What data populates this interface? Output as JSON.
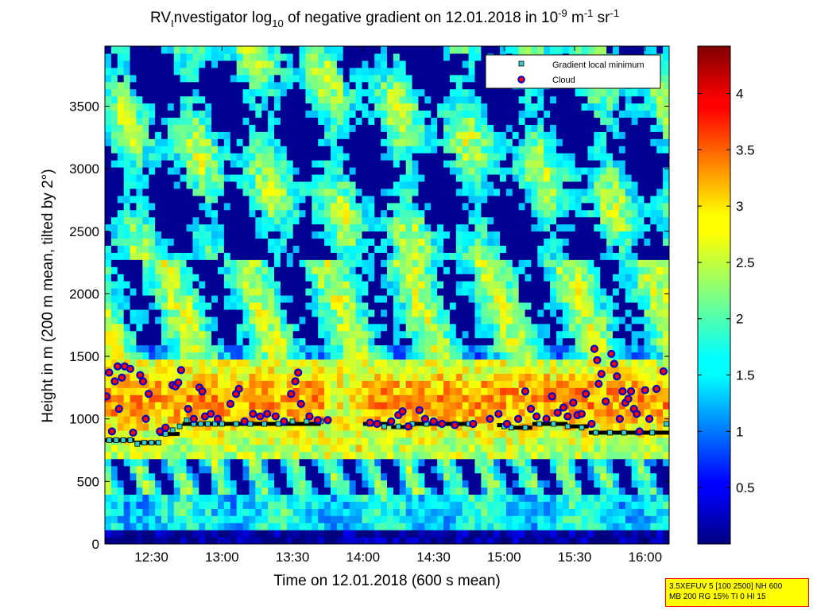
{
  "chart_data": {
    "type": "heatmap",
    "title_main": "RV",
    "title_sub": "I",
    "title_rest": "nvestigator log",
    "title_sub2": "10",
    "title_tail": " of negative gradient on 12.01.2018 in 10",
    "title_sup1": "-9",
    "title_m": " m",
    "title_sup2": "-1",
    "title_sr": " sr",
    "title_sup3": "-1",
    "xlabel": "Time on 12.01.2018 (600 s mean)",
    "ylabel": "Height in m (200 m mean, tilted by 2°)",
    "x_ticks": [
      "12:30",
      "13:00",
      "13:30",
      "14:00",
      "14:30",
      "15:00",
      "15:30",
      "16:00"
    ],
    "x_tick_hours": [
      12.5,
      13.0,
      13.5,
      14.0,
      14.5,
      15.0,
      15.5,
      16.0
    ],
    "xlim": [
      12.17,
      16.17
    ],
    "y_ticks": [
      0,
      500,
      1000,
      1500,
      2000,
      2500,
      3000,
      3500
    ],
    "ylim": [
      0,
      3980
    ],
    "colorbar": {
      "ticks": [
        "0.5",
        "1",
        "1.5",
        "2",
        "2.5",
        "3",
        "3.5",
        "4"
      ],
      "tick_values": [
        0.5,
        1,
        1.5,
        2,
        2.5,
        3,
        3.5,
        4
      ],
      "range": [
        0,
        4.42
      ],
      "colormap": "jet"
    },
    "legend": {
      "placement": "top-right",
      "entries": [
        {
          "label": "Gradient local minimum",
          "marker": "square",
          "color": "#33cccc"
        },
        {
          "label": "Cloud",
          "marker": "circle",
          "color": "#ff0000",
          "edge": "#0000cc"
        }
      ]
    },
    "gradient_minimum": [
      [
        12.2,
        830
      ],
      [
        12.25,
        830
      ],
      [
        12.3,
        830
      ],
      [
        12.35,
        830
      ],
      [
        12.4,
        800
      ],
      [
        12.45,
        810
      ],
      [
        12.5,
        810
      ],
      [
        12.55,
        810
      ],
      [
        12.6,
        880
      ],
      [
        12.65,
        910
      ],
      [
        12.7,
        940
      ],
      [
        12.75,
        990
      ],
      [
        12.8,
        960
      ],
      [
        12.85,
        960
      ],
      [
        12.9,
        960
      ],
      [
        12.95,
        960
      ],
      [
        13.0,
        960
      ],
      [
        13.1,
        960
      ],
      [
        13.2,
        960
      ],
      [
        13.3,
        960
      ],
      [
        13.4,
        960
      ],
      [
        13.5,
        980
      ],
      [
        13.6,
        980
      ],
      [
        13.7,
        980
      ],
      [
        14.05,
        960
      ],
      [
        14.15,
        940
      ],
      [
        14.25,
        940
      ],
      [
        14.35,
        960
      ],
      [
        14.45,
        960
      ],
      [
        14.55,
        960
      ],
      [
        14.65,
        960
      ],
      [
        14.75,
        960
      ],
      [
        15.0,
        940
      ],
      [
        15.05,
        930
      ],
      [
        15.15,
        930
      ],
      [
        15.25,
        960
      ],
      [
        15.35,
        960
      ],
      [
        15.45,
        940
      ],
      [
        15.55,
        930
      ],
      [
        15.65,
        890
      ],
      [
        15.75,
        890
      ],
      [
        15.85,
        890
      ],
      [
        15.95,
        890
      ],
      [
        16.05,
        890
      ],
      [
        16.15,
        960
      ]
    ],
    "cloud": [
      [
        12.18,
        1180
      ],
      [
        12.2,
        1370
      ],
      [
        12.22,
        900
      ],
      [
        12.24,
        1300
      ],
      [
        12.26,
        1420
      ],
      [
        12.27,
        1080
      ],
      [
        12.29,
        1330
      ],
      [
        12.31,
        1420
      ],
      [
        12.35,
        1400
      ],
      [
        12.37,
        890
      ],
      [
        12.42,
        1350
      ],
      [
        12.44,
        1300
      ],
      [
        12.46,
        1000
      ],
      [
        12.48,
        1200
      ],
      [
        12.56,
        900
      ],
      [
        12.6,
        930
      ],
      [
        12.65,
        1270
      ],
      [
        12.67,
        1260
      ],
      [
        12.69,
        1290
      ],
      [
        12.71,
        1390
      ],
      [
        12.76,
        1080
      ],
      [
        12.8,
        1000
      ],
      [
        12.84,
        1250
      ],
      [
        12.86,
        1220
      ],
      [
        12.88,
        1020
      ],
      [
        12.92,
        1040
      ],
      [
        12.97,
        1000
      ],
      [
        13.06,
        1120
      ],
      [
        13.1,
        1200
      ],
      [
        13.12,
        1240
      ],
      [
        13.16,
        980
      ],
      [
        13.22,
        1040
      ],
      [
        13.27,
        1020
      ],
      [
        13.32,
        1040
      ],
      [
        13.38,
        1020
      ],
      [
        13.44,
        980
      ],
      [
        13.49,
        1200
      ],
      [
        13.52,
        1300
      ],
      [
        13.54,
        1370
      ],
      [
        13.56,
        1120
      ],
      [
        13.62,
        1020
      ],
      [
        13.68,
        990
      ],
      [
        13.75,
        990
      ],
      [
        14.05,
        970
      ],
      [
        14.1,
        960
      ],
      [
        14.2,
        980
      ],
      [
        14.25,
        1030
      ],
      [
        14.28,
        1060
      ],
      [
        14.32,
        940
      ],
      [
        14.4,
        1070
      ],
      [
        14.44,
        1000
      ],
      [
        14.5,
        980
      ],
      [
        14.56,
        960
      ],
      [
        14.65,
        950
      ],
      [
        14.78,
        960
      ],
      [
        14.9,
        1000
      ],
      [
        14.96,
        1040
      ],
      [
        15.02,
        960
      ],
      [
        15.1,
        1000
      ],
      [
        15.15,
        1220
      ],
      [
        15.19,
        1080
      ],
      [
        15.23,
        1020
      ],
      [
        15.3,
        1000
      ],
      [
        15.34,
        1180
      ],
      [
        15.38,
        1050
      ],
      [
        15.42,
        1090
      ],
      [
        15.45,
        1020
      ],
      [
        15.49,
        1130
      ],
      [
        15.52,
        1030
      ],
      [
        15.55,
        1040
      ],
      [
        15.58,
        1200
      ],
      [
        15.62,
        960
      ],
      [
        15.64,
        1560
      ],
      [
        15.66,
        1470
      ],
      [
        15.67,
        1280
      ],
      [
        15.69,
        1360
      ],
      [
        15.72,
        1140
      ],
      [
        15.76,
        1520
      ],
      [
        15.78,
        1440
      ],
      [
        15.8,
        1340
      ],
      [
        15.82,
        1000
      ],
      [
        15.84,
        1220
      ],
      [
        15.86,
        1130
      ],
      [
        15.88,
        1160
      ],
      [
        15.9,
        1220
      ],
      [
        15.92,
        1080
      ],
      [
        15.94,
        1040
      ],
      [
        15.96,
        900
      ],
      [
        16.0,
        1230
      ],
      [
        16.03,
        1000
      ],
      [
        16.08,
        1240
      ],
      [
        16.13,
        1380
      ]
    ],
    "black_bands": [
      [
        12.17,
        12.38,
        830
      ],
      [
        12.38,
        12.55,
        810
      ],
      [
        12.55,
        12.7,
        880
      ],
      [
        12.72,
        13.7,
        960
      ],
      [
        14.0,
        14.2,
        960
      ],
      [
        14.2,
        14.35,
        935
      ],
      [
        14.35,
        14.8,
        960
      ],
      [
        14.95,
        15.05,
        950
      ],
      [
        15.05,
        15.2,
        930
      ],
      [
        15.2,
        15.45,
        960
      ],
      [
        15.45,
        15.6,
        940
      ],
      [
        15.6,
        16.17,
        890
      ]
    ]
  },
  "info_box": {
    "line1": "3.5XEFUV 5 [100 2500] NH 600",
    "line2": "MB 200 RG 15% TI 0 HI 15"
  }
}
